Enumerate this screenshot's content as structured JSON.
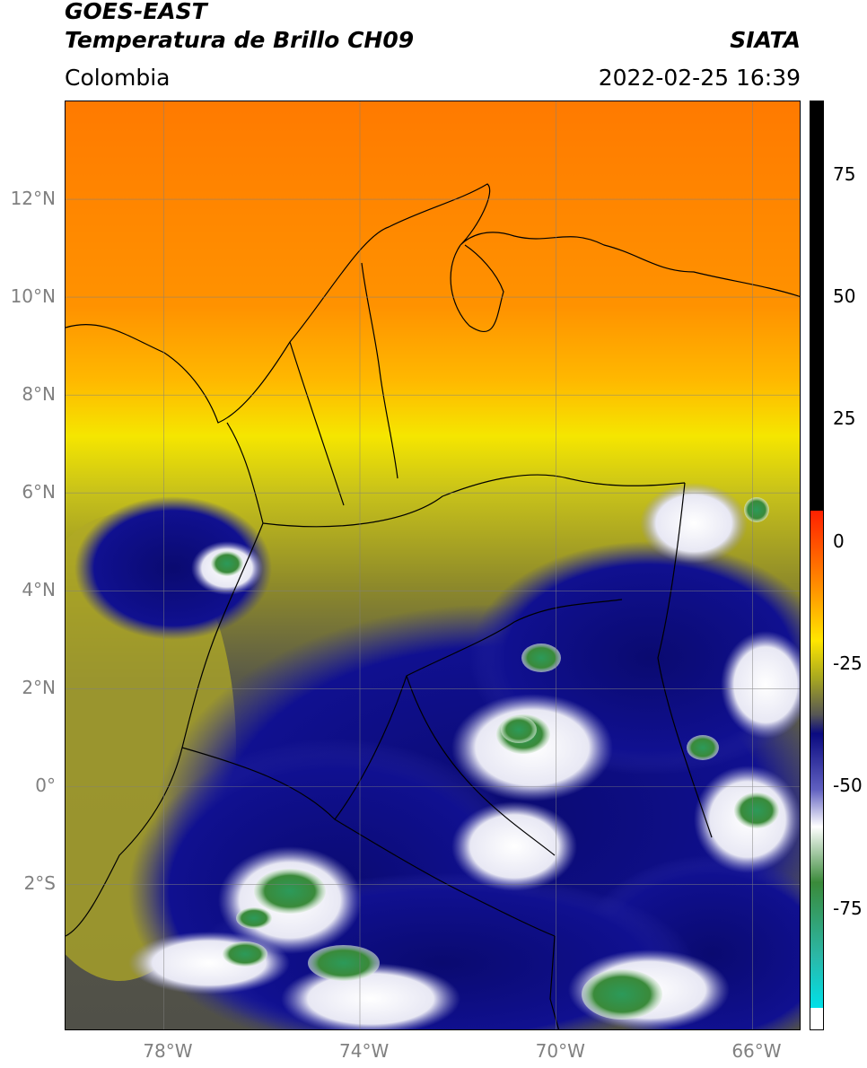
{
  "header": {
    "satellite": "GOES-EAST",
    "product": "Temperatura de Brillo CH09",
    "region": "Colombia",
    "agency": "SIATA",
    "datetime": "2022-02-25 16:39"
  },
  "map": {
    "lon_range": [
      -80,
      -65
    ],
    "lat_range": [
      -5,
      14
    ],
    "lon_ticks": [
      "78°W",
      "74°W",
      "70°W",
      "66°W"
    ],
    "lat_ticks": [
      "12°N",
      "10°N",
      "8°N",
      "6°N",
      "4°N",
      "2°N",
      "0°",
      "2°S"
    ],
    "colors": {
      "warm_orange": "#ff8c00",
      "yellow": "#f5e600",
      "olive": "#a8a820",
      "gray": "#555555",
      "deep_blue": "#0a0a80",
      "white": "#ffffff",
      "green": "#2e8b3a"
    }
  },
  "colorbar": {
    "tick_labels": [
      "75",
      "50",
      "25",
      "0",
      "-25",
      "-50",
      "-75"
    ],
    "tick_values": [
      75,
      50,
      25,
      0,
      -25,
      -50,
      -75
    ],
    "range": [
      -100,
      90
    ]
  }
}
